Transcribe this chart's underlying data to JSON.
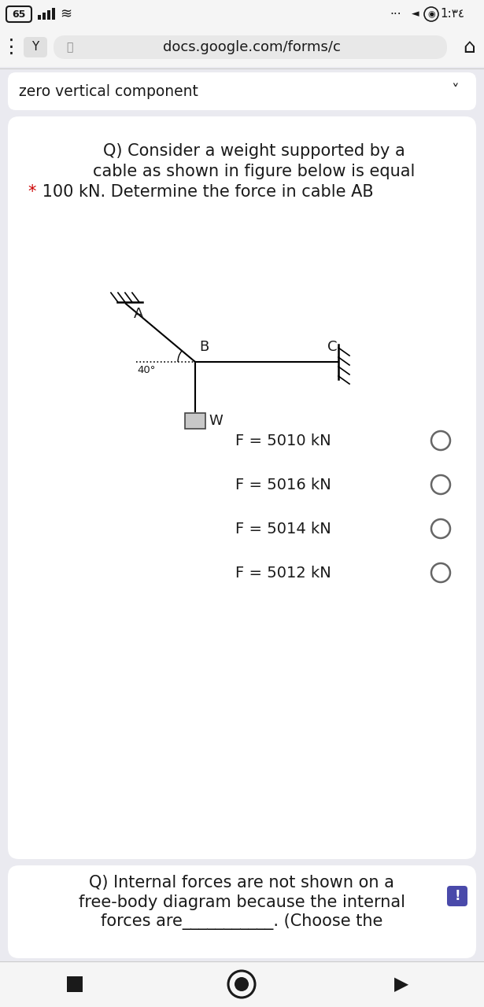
{
  "bg_color": "#eaeaf0",
  "card_color": "#ffffff",
  "status_bar_bg": "#f5f5f5",
  "url_text": "docs.google.com/forms/c",
  "prev_answer_text": "zero vertical component",
  "question_text_line1": "Q) Consider a weight supported by a",
  "question_text_line2": "cable as shown in figure below is equal",
  "question_text_line3_star": "*",
  "question_text_line3_rest": " 100 kN. Determine the force in cable AB",
  "star_color": "#cc0000",
  "options": [
    "F = 5010 kN",
    "F = 5016 kN",
    "F = 5014 kN",
    "F = 5012 kN"
  ],
  "question2_line1": "Q) Internal forces are not shown on a",
  "question2_line2": "free-body diagram because the internal",
  "question2_line3": "forces are___________. (Choose the",
  "text_color": "#1a1a1a",
  "gray_color": "#888888",
  "font_size_question": 15,
  "font_size_option": 14,
  "font_size_status": 11,
  "angle_label": "40°",
  "badge_color": "#4a4aaa",
  "nav_bar_bg": "#f5f5f5"
}
